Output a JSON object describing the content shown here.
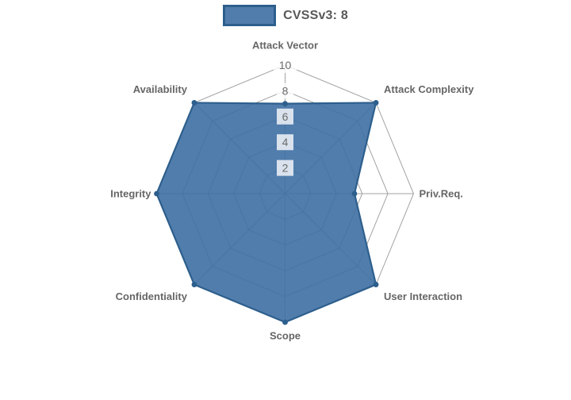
{
  "legend": {
    "label": "CVSSv3: 8"
  },
  "chart_data": {
    "type": "radar",
    "title": "",
    "categories": [
      "Attack Vector",
      "Attack Complexity",
      "Priv.Req.",
      "User Interaction",
      "Scope",
      "Confidentiality",
      "Integrity",
      "Availability"
    ],
    "series": [
      {
        "name": "CVSSv3: 8",
        "values": [
          7,
          10,
          5.4,
          10,
          10,
          10,
          10,
          10
        ]
      }
    ],
    "radial_ticks": [
      2,
      4,
      6,
      8,
      10
    ],
    "rlim": [
      0,
      10
    ],
    "start_angle_deg": 90,
    "direction": "clockwise",
    "grid": true,
    "grid_shape": "polygon",
    "legend_position": "top"
  },
  "style": {
    "series_fill": "rgba(62, 111, 163, 0.9)",
    "series_border": "#2d5f8d",
    "point_color": "#2d5f8d",
    "grid_color": "#a3a3a3",
    "axis_label_color": "#666666",
    "tick_color": "#6b6b6b",
    "tick_backdrop": "rgba(255, 255, 255, 0.78)",
    "legend_text_color": "#595959",
    "background": "#ffffff"
  }
}
